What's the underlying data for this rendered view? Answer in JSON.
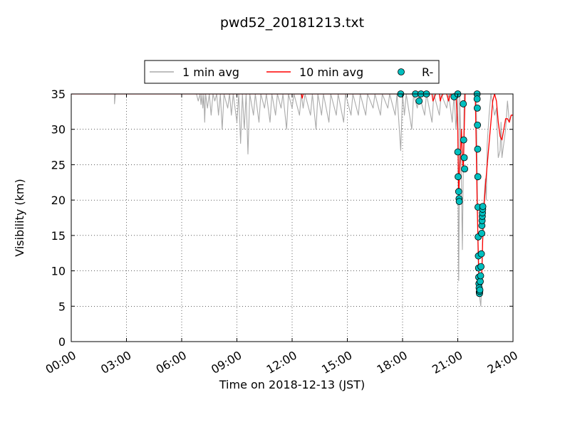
{
  "chart_data": {
    "type": "line",
    "title": "pwd52_20181213.txt",
    "xlabel": "Time on 2018-12-13 (JST)",
    "ylabel": "Visibility (km)",
    "xlim_hours": [
      0,
      24
    ],
    "ylim": [
      0,
      35
    ],
    "x_ticks": [
      {
        "hour": 0,
        "label": "00:00"
      },
      {
        "hour": 3,
        "label": "03:00"
      },
      {
        "hour": 6,
        "label": "06:00"
      },
      {
        "hour": 9,
        "label": "09:00"
      },
      {
        "hour": 12,
        "label": "12:00"
      },
      {
        "hour": 15,
        "label": "15:00"
      },
      {
        "hour": 18,
        "label": "18:00"
      },
      {
        "hour": 21,
        "label": "21:00"
      },
      {
        "hour": 24,
        "label": "24:00"
      }
    ],
    "y_ticks": [
      0,
      5,
      10,
      15,
      20,
      25,
      30,
      35
    ],
    "grid": true,
    "legend_position": "top-center-outside",
    "colors": {
      "one_min": "#aaaaaa",
      "ten_min": "#ff0000",
      "rain_fill": "#00bfbf",
      "rain_edge": "#000000"
    },
    "series": [
      {
        "name": "1 min avg",
        "style": "line",
        "points": [
          [
            0,
            35
          ],
          [
            2.35,
            35
          ],
          [
            2.35,
            33.6
          ],
          [
            2.4,
            35
          ],
          [
            6.8,
            35
          ],
          [
            6.9,
            34
          ],
          [
            7.0,
            35
          ],
          [
            7.05,
            33.5
          ],
          [
            7.1,
            35
          ],
          [
            7.15,
            33
          ],
          [
            7.2,
            35
          ],
          [
            7.25,
            31
          ],
          [
            7.3,
            35
          ],
          [
            7.4,
            33
          ],
          [
            7.5,
            35
          ],
          [
            7.6,
            32
          ],
          [
            7.7,
            35
          ],
          [
            7.8,
            34
          ],
          [
            7.9,
            35
          ],
          [
            8.0,
            32
          ],
          [
            8.1,
            35
          ],
          [
            8.2,
            30
          ],
          [
            8.3,
            35
          ],
          [
            8.5,
            33
          ],
          [
            8.6,
            35
          ],
          [
            8.7,
            32
          ],
          [
            8.8,
            35
          ],
          [
            9.0,
            31
          ],
          [
            9.1,
            35
          ],
          [
            9.2,
            28
          ],
          [
            9.3,
            35
          ],
          [
            9.4,
            30
          ],
          [
            9.5,
            35
          ],
          [
            9.6,
            26.5
          ],
          [
            9.7,
            35
          ],
          [
            9.9,
            32
          ],
          [
            10.0,
            35
          ],
          [
            10.2,
            31
          ],
          [
            10.3,
            35
          ],
          [
            10.5,
            33
          ],
          [
            10.6,
            35
          ],
          [
            10.8,
            31
          ],
          [
            10.9,
            35
          ],
          [
            11.1,
            32
          ],
          [
            11.2,
            35
          ],
          [
            11.4,
            33
          ],
          [
            11.5,
            35
          ],
          [
            11.7,
            30
          ],
          [
            11.8,
            35
          ],
          [
            12.0,
            33
          ],
          [
            12.1,
            35
          ],
          [
            12.4,
            32
          ],
          [
            12.5,
            35
          ],
          [
            12.6,
            33
          ],
          [
            12.7,
            35
          ],
          [
            13.0,
            32
          ],
          [
            13.1,
            35
          ],
          [
            13.3,
            30
          ],
          [
            13.4,
            35
          ],
          [
            13.6,
            32
          ],
          [
            13.7,
            35
          ],
          [
            14.0,
            31
          ],
          [
            14.1,
            35
          ],
          [
            14.4,
            32
          ],
          [
            14.5,
            35
          ],
          [
            14.8,
            31
          ],
          [
            14.9,
            35
          ],
          [
            15.2,
            32
          ],
          [
            15.3,
            35
          ],
          [
            15.6,
            32
          ],
          [
            15.7,
            35
          ],
          [
            16.0,
            32
          ],
          [
            16.1,
            35
          ],
          [
            16.4,
            33
          ],
          [
            16.5,
            35
          ],
          [
            16.8,
            32
          ],
          [
            16.9,
            35
          ],
          [
            17.2,
            33
          ],
          [
            17.3,
            35
          ],
          [
            17.6,
            32
          ],
          [
            17.7,
            35
          ],
          [
            17.9,
            27
          ],
          [
            18.0,
            35
          ],
          [
            18.1,
            32
          ],
          [
            18.2,
            35
          ],
          [
            18.5,
            30
          ],
          [
            18.6,
            35
          ],
          [
            18.8,
            33
          ],
          [
            18.9,
            35
          ],
          [
            19.2,
            32
          ],
          [
            19.3,
            35
          ],
          [
            19.6,
            31
          ],
          [
            19.7,
            35
          ],
          [
            20.0,
            32
          ],
          [
            20.1,
            35
          ],
          [
            20.4,
            33
          ],
          [
            20.5,
            35
          ],
          [
            20.7,
            31
          ],
          [
            20.8,
            35
          ],
          [
            20.9,
            30
          ],
          [
            21.0,
            35
          ],
          [
            21.02,
            20
          ],
          [
            21.05,
            8.6
          ],
          [
            21.08,
            20
          ],
          [
            21.1,
            35
          ],
          [
            21.15,
            30
          ],
          [
            21.2,
            22
          ],
          [
            21.25,
            13
          ],
          [
            21.3,
            25
          ],
          [
            21.35,
            35
          ],
          [
            22.0,
            35
          ],
          [
            22.05,
            25
          ],
          [
            22.1,
            12
          ],
          [
            22.15,
            8
          ],
          [
            22.2,
            6
          ],
          [
            22.25,
            5
          ],
          [
            22.3,
            8
          ],
          [
            22.35,
            15
          ],
          [
            22.4,
            19
          ],
          [
            22.5,
            23
          ],
          [
            22.55,
            20
          ],
          [
            22.6,
            28
          ],
          [
            22.7,
            32
          ],
          [
            22.8,
            35
          ],
          [
            23.0,
            32
          ],
          [
            23.1,
            33
          ],
          [
            23.2,
            26
          ],
          [
            23.3,
            27
          ],
          [
            23.35,
            31
          ],
          [
            23.4,
            26
          ],
          [
            23.5,
            28
          ],
          [
            23.6,
            30
          ],
          [
            23.7,
            34
          ],
          [
            23.8,
            31
          ],
          [
            23.9,
            32
          ],
          [
            24.0,
            32
          ]
        ]
      },
      {
        "name": "10 min avg",
        "style": "line",
        "points": [
          [
            0,
            35
          ],
          [
            12.5,
            35
          ],
          [
            12.55,
            34.4
          ],
          [
            12.6,
            35
          ],
          [
            19.6,
            35
          ],
          [
            19.65,
            34
          ],
          [
            19.7,
            34.3
          ],
          [
            19.8,
            35
          ],
          [
            20.0,
            35
          ],
          [
            20.05,
            34
          ],
          [
            20.1,
            34.5
          ],
          [
            20.2,
            35
          ],
          [
            20.4,
            35
          ],
          [
            20.5,
            34
          ],
          [
            20.6,
            35
          ],
          [
            20.9,
            35
          ],
          [
            21.0,
            30
          ],
          [
            21.05,
            21
          ],
          [
            21.1,
            24
          ],
          [
            21.2,
            30
          ],
          [
            21.25,
            26
          ],
          [
            21.3,
            24
          ],
          [
            21.35,
            30
          ],
          [
            21.4,
            35
          ],
          [
            21.95,
            35
          ],
          [
            22.0,
            28
          ],
          [
            22.05,
            20
          ],
          [
            22.1,
            14
          ],
          [
            22.15,
            9
          ],
          [
            22.2,
            7
          ],
          [
            22.25,
            7
          ],
          [
            22.3,
            9
          ],
          [
            22.35,
            14
          ],
          [
            22.4,
            18
          ],
          [
            22.5,
            22
          ],
          [
            22.6,
            25
          ],
          [
            22.7,
            28
          ],
          [
            22.8,
            31
          ],
          [
            22.9,
            34
          ],
          [
            23.0,
            35
          ],
          [
            23.1,
            34
          ],
          [
            23.2,
            31
          ],
          [
            23.3,
            29
          ],
          [
            23.4,
            28.5
          ],
          [
            23.5,
            30
          ],
          [
            23.6,
            31.5
          ],
          [
            23.7,
            31.5
          ],
          [
            23.8,
            31
          ],
          [
            23.9,
            32
          ],
          [
            24.0,
            32
          ]
        ]
      },
      {
        "name": "R-",
        "style": "marker",
        "points": [
          [
            17.9,
            35
          ],
          [
            18.7,
            35
          ],
          [
            18.9,
            34
          ],
          [
            19.0,
            35
          ],
          [
            19.3,
            35
          ],
          [
            20.8,
            34.6
          ],
          [
            21.0,
            35
          ],
          [
            21.0,
            26.8
          ],
          [
            21.02,
            23.3
          ],
          [
            21.05,
            21.2
          ],
          [
            21.07,
            20.2
          ],
          [
            21.08,
            19.8
          ],
          [
            21.3,
            33.6
          ],
          [
            21.32,
            28.5
          ],
          [
            21.35,
            26
          ],
          [
            21.37,
            24.4
          ],
          [
            22.05,
            35
          ],
          [
            22.05,
            34.3
          ],
          [
            22.06,
            33
          ],
          [
            22.07,
            30.6
          ],
          [
            22.08,
            27.2
          ],
          [
            22.09,
            23.3
          ],
          [
            22.1,
            19
          ],
          [
            22.11,
            14.8
          ],
          [
            22.12,
            12.1
          ],
          [
            22.13,
            10.4
          ],
          [
            22.14,
            9.1
          ],
          [
            22.15,
            8.2
          ],
          [
            22.16,
            7.6
          ],
          [
            22.17,
            7
          ],
          [
            22.18,
            6.8
          ],
          [
            22.19,
            7.1
          ],
          [
            22.2,
            7.3
          ],
          [
            22.22,
            8.5
          ],
          [
            22.24,
            9.3
          ],
          [
            22.26,
            10.6
          ],
          [
            22.28,
            12.4
          ],
          [
            22.3,
            15.3
          ],
          [
            22.31,
            16.4
          ],
          [
            22.32,
            17.1
          ],
          [
            22.33,
            17.7
          ],
          [
            22.34,
            18.2
          ],
          [
            22.35,
            18.7
          ],
          [
            22.36,
            19.1
          ]
        ]
      }
    ]
  }
}
